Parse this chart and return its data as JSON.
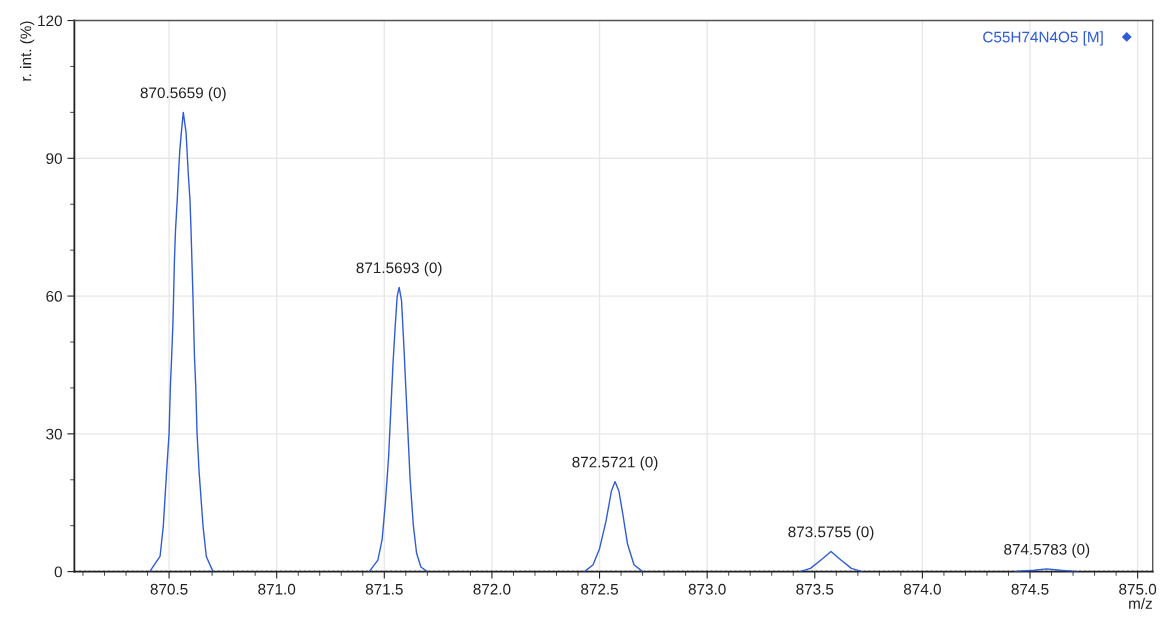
{
  "chart_data": {
    "type": "line",
    "xlabel": "m/z",
    "ylabel": "r. int. (%)",
    "series": [
      {
        "name": "C55H74N4O5 [M]",
        "color": "#2f5bd8",
        "x": [
          870.41,
          870.458,
          870.473,
          870.488,
          870.5,
          870.506,
          870.512,
          870.518,
          870.521,
          870.525,
          870.53,
          870.538,
          870.544,
          870.55,
          870.557,
          870.566,
          870.579,
          870.589,
          870.597,
          870.602,
          870.606,
          870.611,
          870.618,
          870.624,
          870.63,
          870.64,
          870.658,
          870.673,
          870.704,
          871.0,
          871.43,
          871.47,
          871.49,
          871.505,
          871.52,
          871.53,
          871.54,
          871.55,
          871.56,
          871.569,
          871.58,
          871.59,
          871.6,
          871.61,
          871.62,
          871.635,
          871.65,
          871.67,
          871.7,
          872.0,
          872.43,
          872.47,
          872.5,
          872.53,
          872.555,
          872.572,
          872.59,
          872.61,
          872.63,
          872.66,
          872.7,
          873.0,
          873.43,
          873.48,
          873.53,
          873.5755,
          873.62,
          873.67,
          873.72,
          874.0,
          874.43,
          874.52,
          874.578,
          874.64,
          874.72
        ],
        "values": [
          0,
          3.3,
          9.8,
          21.4,
          30.1,
          40.3,
          46.8,
          54.2,
          59.9,
          67.9,
          74.4,
          81,
          86.8,
          91.9,
          95.6,
          100,
          95.6,
          86.8,
          81,
          74.4,
          67.9,
          59.9,
          46.8,
          40.3,
          30.1,
          21.4,
          9.8,
          3.3,
          0,
          null,
          0,
          2.5,
          7,
          15,
          25,
          35,
          45,
          53,
          60,
          61.9,
          59,
          50,
          40,
          30,
          20,
          10,
          4,
          1,
          0,
          null,
          0,
          1.5,
          5,
          11,
          17.5,
          19.6,
          17.5,
          12,
          6,
          1.5,
          0,
          null,
          0,
          0.7,
          2.6,
          4.4,
          2.6,
          0.7,
          0,
          null,
          0,
          0.3,
          0.6,
          0.3,
          0
        ]
      }
    ],
    "annotations": [
      {
        "text": "870.5659 (0)",
        "x": 870.566,
        "y": 100
      },
      {
        "text": "871.5693 (0)",
        "x": 871.569,
        "y": 61.9
      },
      {
        "text": "872.5721 (0)",
        "x": 872.572,
        "y": 19.6
      },
      {
        "text": "873.5755 (0)",
        "x": 873.5755,
        "y": 4.4
      },
      {
        "text": "874.5783 (0)",
        "x": 874.578,
        "y": 0.6
      }
    ],
    "ref_lines": [
      {
        "axis": "y",
        "value": 0,
        "color": "#000000",
        "line_style": "dotted"
      }
    ],
    "xlim": [
      870.06,
      875.07
    ],
    "xticks": [
      {
        "value": 870.5,
        "label": "870.5"
      },
      {
        "value": 871.0,
        "label": "871.0"
      },
      {
        "value": 871.5,
        "label": "871.5"
      },
      {
        "value": 872.0,
        "label": "872.0"
      },
      {
        "value": 872.5,
        "label": "872.5"
      },
      {
        "value": 873.0,
        "label": "873.0"
      },
      {
        "value": 873.5,
        "label": "873.5"
      },
      {
        "value": 874.0,
        "label": "874.0"
      },
      {
        "value": 874.5,
        "label": "874.5"
      },
      {
        "value": 875.0,
        "label": "875.0"
      }
    ],
    "ylim": [
      0,
      120
    ],
    "yticks": [
      0,
      30,
      60,
      90,
      120
    ],
    "grid": true,
    "legend": "top right",
    "marker": "none",
    "line_style": "solid"
  }
}
